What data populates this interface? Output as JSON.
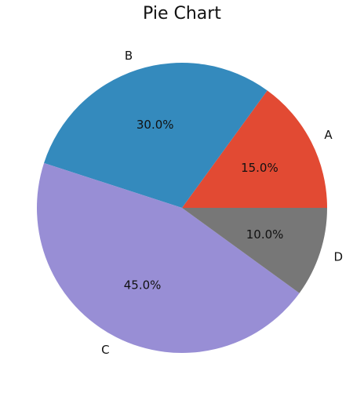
{
  "chart_data": {
    "type": "pie",
    "title": "Pie Chart",
    "categories": [
      "A",
      "B",
      "C",
      "D"
    ],
    "values": [
      15.0,
      30.0,
      45.0,
      10.0
    ],
    "value_labels": [
      "15.0%",
      "30.0%",
      "45.0%",
      "10.0%"
    ],
    "colors": [
      "#E24A33",
      "#348ABD",
      "#988ED5",
      "#777777"
    ],
    "start_angle_deg": 0,
    "direction": "counterclockwise"
  }
}
